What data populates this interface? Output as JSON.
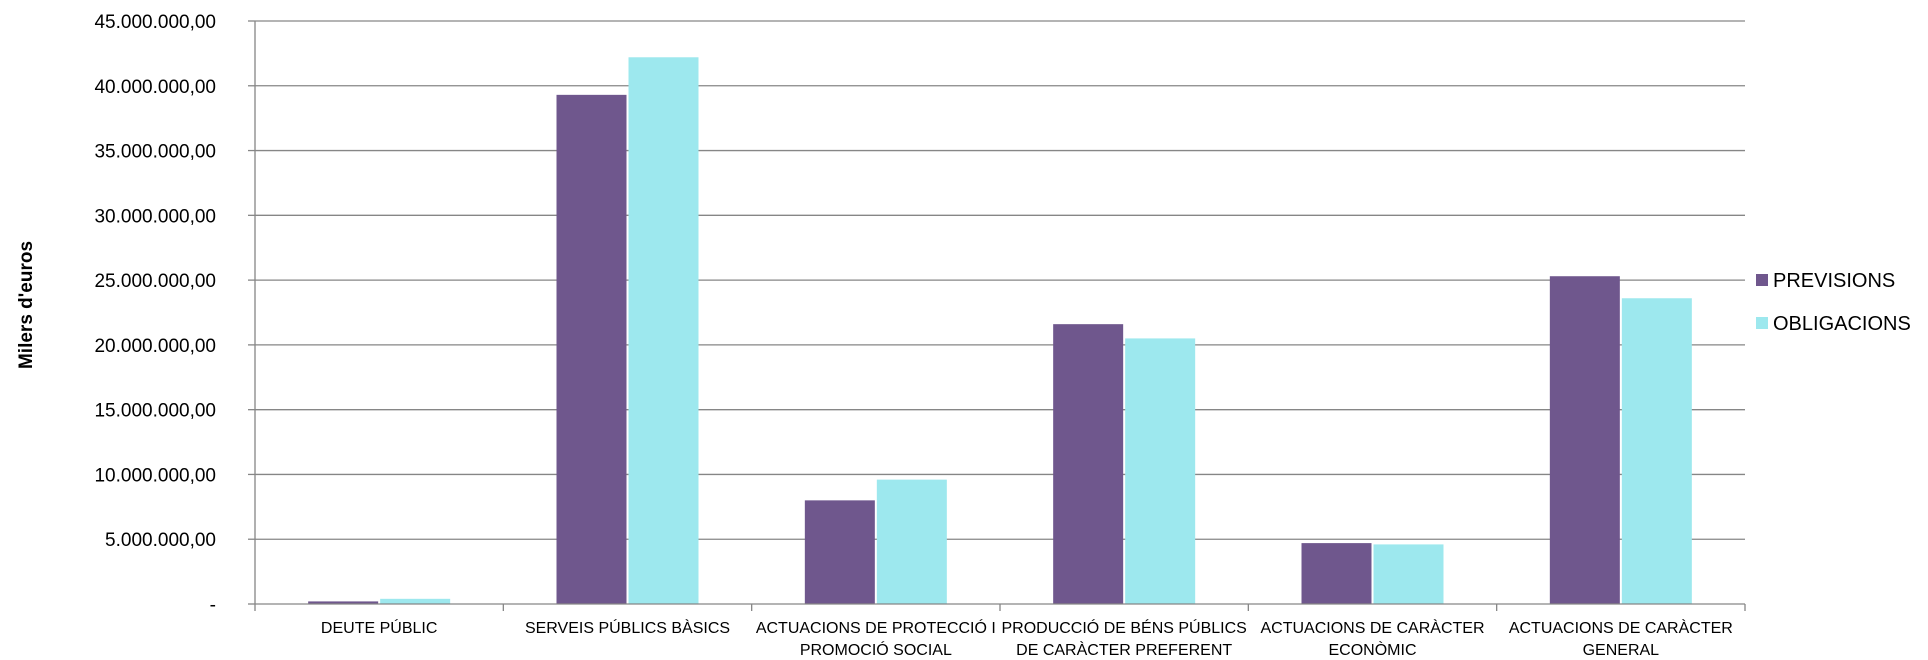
{
  "chart_data": {
    "type": "bar",
    "title": "",
    "xlabel": "",
    "ylabel": "Milers d'euros",
    "categories": [
      [
        "DEUTE PÚBLIC"
      ],
      [
        "SERVEIS PÚBLICS BÀSICS"
      ],
      [
        "ACTUACIONS DE PROTECCIÓ I",
        "PROMOCIÓ SOCIAL"
      ],
      [
        "PRODUCCIÓ DE BÉNS PÚBLICS",
        "DE CARÀCTER PREFERENT"
      ],
      [
        "ACTUACIONS DE CARÀCTER",
        "ECONÒMIC"
      ],
      [
        "ACTUACIONS DE CARÀCTER",
        "GENERAL"
      ]
    ],
    "series": [
      {
        "name": "PREVISIONS",
        "color": "#6f578d",
        "values": [
          200000,
          39300000,
          8000000,
          21600000,
          4700000,
          25300000
        ]
      },
      {
        "name": "OBLIGACIONS",
        "color": "#9de8ee",
        "values": [
          400000,
          42200000,
          9600000,
          20500000,
          4600000,
          23600000
        ]
      }
    ],
    "ylim": [
      0,
      45000000
    ],
    "yticks": [
      0,
      5000000,
      10000000,
      15000000,
      20000000,
      25000000,
      30000000,
      35000000,
      40000000,
      45000000
    ],
    "ytick_labels": [
      "-",
      "5.000.000,00",
      "10.000.000,00",
      "15.000.000,00",
      "20.000.000,00",
      "25.000.000,00",
      "30.000.000,00",
      "35.000.000,00",
      "40.000.000,00",
      "45.000.000,00"
    ],
    "grid": true,
    "legend": "right",
    "gridline_color": "#868686",
    "axis_color": "#868686"
  }
}
